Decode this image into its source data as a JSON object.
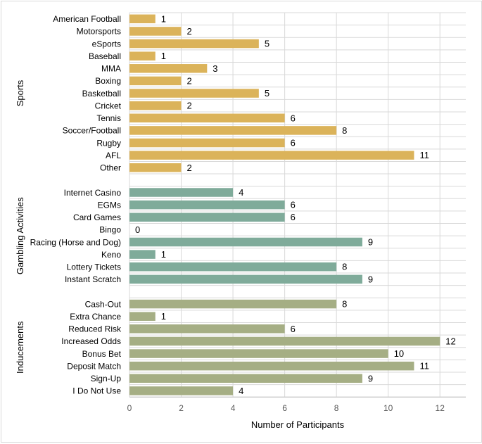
{
  "chart_data": {
    "type": "bar",
    "orientation": "horizontal",
    "title": "",
    "xlabel": "Number of Participants",
    "ylabel": "",
    "xlim": [
      0,
      13
    ],
    "xticks": [
      0,
      2,
      4,
      6,
      8,
      10,
      12
    ],
    "grid": true,
    "groups": [
      {
        "name": "Sports",
        "color": "#dbb35a",
        "categories": [
          "American Football",
          "Motorsports",
          "eSports",
          "Baseball",
          "MMA",
          "Boxing",
          "Basketball",
          "Cricket",
          "Tennis",
          "Soccer/Football",
          "Rugby",
          "AFL",
          "Other"
        ],
        "values": [
          1,
          2,
          5,
          1,
          3,
          2,
          5,
          2,
          6,
          8,
          6,
          11,
          2
        ]
      },
      {
        "name": "Gambling Activities",
        "color": "#7fab9a",
        "categories": [
          "Internet Casino",
          "EGMs",
          "Card Games",
          "Bingo",
          "Racing (Horse and Dog)",
          "Keno",
          "Lottery Tickets",
          "Instant Scratch"
        ],
        "values": [
          4,
          6,
          6,
          0,
          9,
          1,
          8,
          9
        ]
      },
      {
        "name": "Inducements",
        "color": "#a5ae84",
        "categories": [
          "Cash-Out",
          "Extra Chance",
          "Reduced Risk",
          "Increased Odds",
          "Bonus Bet",
          "Deposit Match",
          "Sign-Up",
          "I Do Not Use"
        ],
        "values": [
          8,
          1,
          6,
          12,
          10,
          11,
          9,
          4
        ]
      }
    ]
  }
}
